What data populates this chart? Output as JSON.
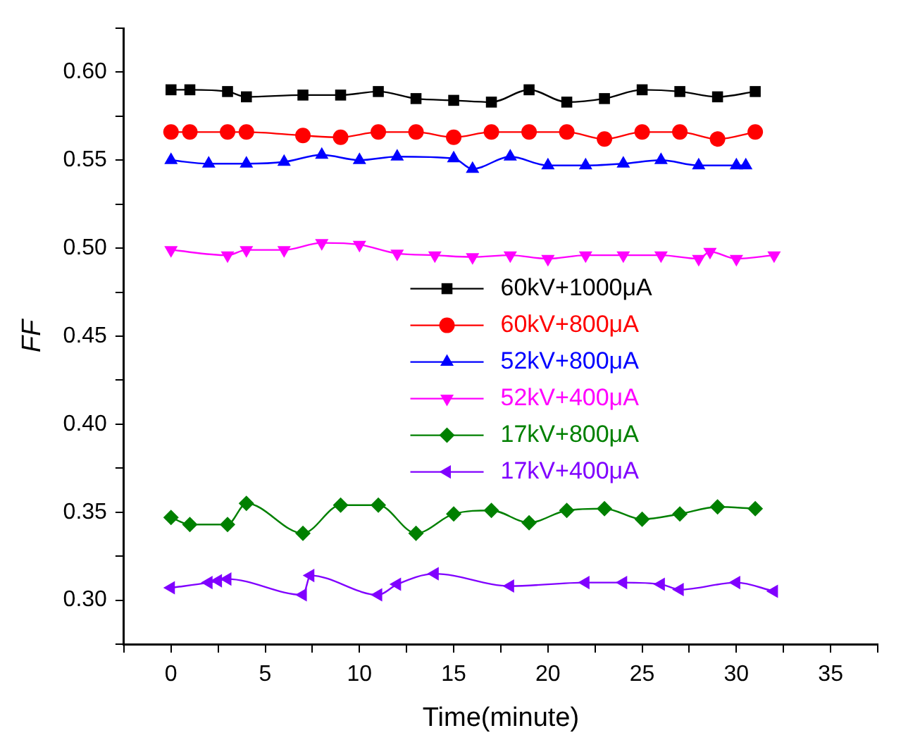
{
  "chart_data": {
    "type": "line",
    "xlabel": "Time(minute)",
    "ylabel": "FF",
    "xlim": [
      -2.5,
      37.5
    ],
    "ylim": [
      0.275,
      0.625
    ],
    "xticks": [
      {
        "value": -2.5,
        "label": null
      },
      0,
      {
        "value": 2.5,
        "label": null
      },
      5,
      {
        "value": 7.5,
        "label": null
      },
      10,
      {
        "value": 12.5,
        "label": null
      },
      15,
      {
        "value": 17.5,
        "label": null
      },
      20,
      {
        "value": 22.5,
        "label": null
      },
      25,
      {
        "value": 27.5,
        "label": null
      },
      30,
      {
        "value": 32.5,
        "label": null
      },
      35,
      {
        "value": 37.5,
        "label": null
      }
    ],
    "yticks": [
      {
        "value": 0.275,
        "label": null
      },
      {
        "value": 0.3,
        "label": "0.30"
      },
      {
        "value": 0.325,
        "label": null
      },
      {
        "value": 0.35,
        "label": "0.35"
      },
      {
        "value": 0.375,
        "label": null
      },
      {
        "value": 0.4,
        "label": "0.40"
      },
      {
        "value": 0.425,
        "label": null
      },
      {
        "value": 0.45,
        "label": "0.45"
      },
      {
        "value": 0.475,
        "label": null
      },
      {
        "value": 0.5,
        "label": "0.50"
      },
      {
        "value": 0.525,
        "label": null
      },
      {
        "value": 0.55,
        "label": "0.55"
      },
      {
        "value": 0.575,
        "label": null
      },
      {
        "value": 0.6,
        "label": "0.60"
      },
      {
        "value": 0.625,
        "label": null
      }
    ],
    "grid": false,
    "legend": "center",
    "line_style": "solid",
    "series": [
      {
        "name": "60kV+1000μA",
        "color": "#000000",
        "marker": "square",
        "x": [
          0,
          1,
          3,
          4,
          7,
          9,
          11,
          13,
          15,
          17,
          19,
          21,
          23,
          25,
          27,
          29,
          31
        ],
        "values": [
          0.59,
          0.59,
          0.589,
          0.586,
          0.587,
          0.587,
          0.589,
          0.585,
          0.584,
          0.583,
          0.59,
          0.583,
          0.585,
          0.59,
          0.589,
          0.586,
          0.589
        ]
      },
      {
        "name": "60kV+800μA",
        "color": "#ff0000",
        "marker": "circle",
        "x": [
          0,
          1,
          3,
          4,
          7,
          9,
          11,
          13,
          15,
          17,
          19,
          21,
          23,
          25,
          27,
          29,
          31
        ],
        "values": [
          0.566,
          0.566,
          0.566,
          0.566,
          0.564,
          0.563,
          0.566,
          0.566,
          0.563,
          0.566,
          0.566,
          0.566,
          0.562,
          0.566,
          0.566,
          0.562,
          0.566
        ]
      },
      {
        "name": "52kV+800μA",
        "color": "#0000ff",
        "marker": "triangle",
        "x": [
          0,
          2,
          4,
          6,
          8,
          10,
          12,
          15,
          16,
          18,
          20,
          22,
          24,
          26,
          28,
          30,
          30.5
        ],
        "values": [
          0.55,
          0.548,
          0.548,
          0.549,
          0.553,
          0.55,
          0.552,
          0.551,
          0.545,
          0.552,
          0.547,
          0.547,
          0.548,
          0.55,
          0.547,
          0.547,
          0.547
        ]
      },
      {
        "name": "52kV+400μA",
        "color": "#ff00ff",
        "marker": "triangle-down",
        "x": [
          0,
          3,
          4,
          6,
          8,
          10,
          12,
          14,
          16,
          18,
          20,
          22,
          24,
          26,
          28,
          28.6,
          30,
          32
        ],
        "values": [
          0.499,
          0.496,
          0.499,
          0.499,
          0.503,
          0.502,
          0.497,
          0.496,
          0.495,
          0.496,
          0.494,
          0.496,
          0.496,
          0.496,
          0.494,
          0.498,
          0.494,
          0.496
        ]
      },
      {
        "name": "17kV+800μA",
        "color": "#008000",
        "marker": "diamond",
        "x": [
          0,
          1,
          3,
          4,
          7,
          9,
          11,
          13,
          15,
          17,
          19,
          21,
          23,
          25,
          27,
          29,
          31
        ],
        "values": [
          0.347,
          0.343,
          0.343,
          0.355,
          0.338,
          0.354,
          0.354,
          0.338,
          0.349,
          0.351,
          0.344,
          0.351,
          0.352,
          0.346,
          0.349,
          0.353,
          0.352
        ]
      },
      {
        "name": "17kV+400μA",
        "color": "#8000ff",
        "marker": "triangle-left",
        "x": [
          0,
          2,
          2.5,
          3,
          7,
          7.4,
          11,
          12,
          14,
          18,
          22,
          24,
          26,
          27,
          30,
          32
        ],
        "values": [
          0.307,
          0.31,
          0.311,
          0.312,
          0.303,
          0.314,
          0.303,
          0.309,
          0.315,
          0.308,
          0.31,
          0.31,
          0.309,
          0.306,
          0.31,
          0.305
        ]
      }
    ]
  }
}
